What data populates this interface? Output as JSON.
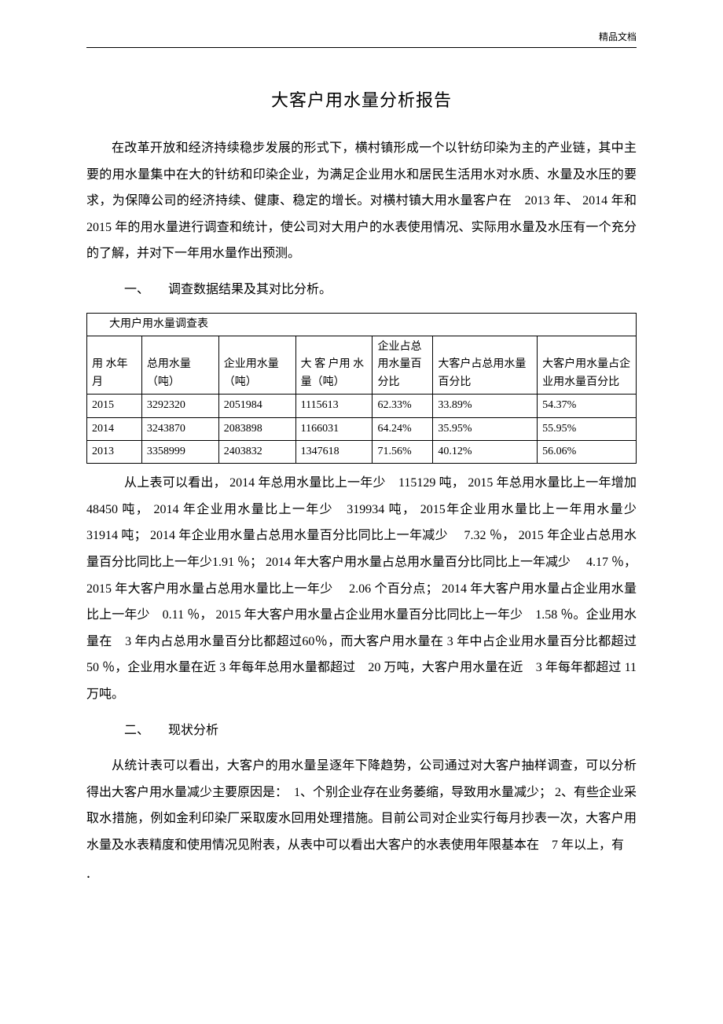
{
  "header": {
    "mark": "精品文档"
  },
  "title": "大客户用水量分析报告",
  "intro": "在改革开放和经济持续稳步发展的形式下，横村镇形成一个以针纺印染为主的产业链，其中主要的用水量集中在大的针纺和印染企业，为满足企业用水和居民生活用水对水质、水量及水压的要求，为保障公司的经济持续、健康、稳定的增长。对横村镇大用水量客户在　2013 年、 2014 年和 2015 年的用水量进行调查和统计，使公司对大用户的水表使用情况、实际用水量及水压有一个充分的了解，并对下一年用水量作出预测。",
  "section1": {
    "num": "一、",
    "title": "调查数据结果及其对比分析。"
  },
  "table": {
    "caption": "大用户用水量调查表",
    "headers": {
      "ym": "用 水年月",
      "tot": "总用水量（吨）",
      "ent": "企业用水量（吨）",
      "cust": "大 客 户用 水 量（吨）",
      "p1": "企业占总用水量百分比",
      "p2": "大客户占总用水量百分比",
      "p3": "大客户用水量占企业用水量百分比"
    },
    "rows": [
      {
        "ym": "2015",
        "tot": "3292320",
        "ent": "2051984",
        "cust": "1115613",
        "p1": "62.33%",
        "p2": "33.89%",
        "p3": "54.37%"
      },
      {
        "ym": "2014",
        "tot": "3243870",
        "ent": "2083898",
        "cust": "1166031",
        "p1": "64.24%",
        "p2": "35.95%",
        "p3": "55.95%"
      },
      {
        "ym": "2013",
        "tot": "3358999",
        "ent": "2403832",
        "cust": "1347618",
        "p1": "71.56%",
        "p2": "40.12%",
        "p3": "56.06%"
      }
    ]
  },
  "analysis": "从上表可以看出， 2014 年总用水量比上一年少　115129 吨， 2015 年总用水量比上一年增加 48450 吨， 2014 年企业用水量比上一年少　319934 吨， 2015年企业用水量比上一年用水量少　31914 吨； 2014 年企业用水量占总用水量百分比同比上一年减少　 7.32 ％， 2015 年企业占总用水量百分比同比上一年少1.91 ％； 2014 年大客户用水量占总用水量百分比同比上一年减少　 4.17 ％，2015 年大客户用水量占总用水量比上一年少　 2.06 个百分点； 2014 年大客户用水量占企业用水量比上一年少　0.11 ％， 2015 年大客户用水量占企业用水量百分比同比上一年少　1.58 ％。企业用水量在　3 年内占总用水量百分比都超过60％，而大客户用水量在 3 年中占企业用水量百分比都超过　50 ％，企业用水量在近 3 年每年总用水量都超过　20 万吨，大客户用水量在近　3 年每年都超过 11万吨。",
  "section2": {
    "num": "二、",
    "title": "现状分析"
  },
  "status": "从统计表可以看出，大客户的用水量呈逐年下降趋势，公司通过对大客户抽样调查，可以分析得出大客户用水量减少主要原因是：　1、个别企业存在业务萎缩，导致用水量减少； 2、有些企业采取水措施，例如金利印染厂采取废水回用处理措施。目前公司对企业实行每月抄表一次，大客户用水量及水表精度和使用情况见附表，从表中可以看出大客户的水表使用年限基本在　7 年以上，有",
  "footer": "."
}
